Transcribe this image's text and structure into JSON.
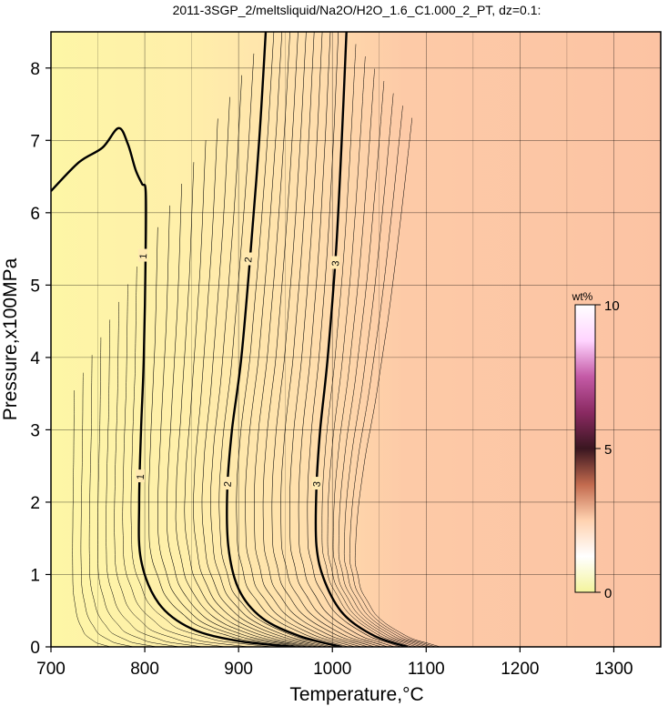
{
  "chart_data": {
    "type": "contour",
    "title": "2011-3SGP_2/meltsliquid/Na2O/H2O_1.6_C1.000_2_PT, dz=0.1:",
    "xlabel": "Temperature,°C",
    "ylabel": "Pressure,x100MPa",
    "xlim": [
      700,
      1350
    ],
    "ylim": [
      0,
      8.5
    ],
    "xticks": [
      "700",
      "800",
      "900",
      "1000",
      "1100",
      "1200",
      "1300"
    ],
    "yticks": [
      "0",
      "1",
      "2",
      "3",
      "4",
      "5",
      "6",
      "7",
      "8"
    ],
    "grid": true,
    "contour_interval": 0.1,
    "major_contours": [
      {
        "level": "1",
        "labels": [
          {
            "x": 795,
            "y": 2.35
          },
          {
            "x": 798,
            "y": 5.4
          }
        ],
        "points": [
          [
            700,
            6.3
          ],
          [
            730,
            6.7
          ],
          [
            755,
            6.9
          ],
          [
            772,
            7.17
          ],
          [
            782,
            6.95
          ],
          [
            790,
            6.6
          ],
          [
            797,
            6.4
          ],
          [
            801,
            6.3
          ],
          [
            801,
            5.5
          ],
          [
            799,
            4.0
          ],
          [
            796,
            3.0
          ],
          [
            794,
            2.0
          ],
          [
            796,
            1.2
          ],
          [
            815,
            0.6
          ],
          [
            850,
            0.25
          ],
          [
            900,
            0.08
          ],
          [
            960,
            0.0
          ]
        ]
      },
      {
        "level": "2",
        "labels": [
          {
            "x": 888,
            "y": 2.25
          },
          {
            "x": 910,
            "y": 5.35
          }
        ],
        "points": [
          [
            929,
            8.5
          ],
          [
            922,
            7.0
          ],
          [
            913,
            5.5
          ],
          [
            903,
            4.0
          ],
          [
            893,
            3.0
          ],
          [
            888,
            2.2
          ],
          [
            889,
            1.4
          ],
          [
            900,
            0.8
          ],
          [
            925,
            0.4
          ],
          [
            965,
            0.15
          ],
          [
            1010,
            0.0
          ]
        ]
      },
      {
        "level": "3",
        "labels": [
          {
            "x": 983,
            "y": 2.25
          },
          {
            "x": 1003,
            "y": 5.3
          }
        ],
        "points": [
          [
            1015,
            8.5
          ],
          [
            1010,
            7.0
          ],
          [
            1004,
            5.5
          ],
          [
            995,
            4.0
          ],
          [
            987,
            3.0
          ],
          [
            983,
            2.2
          ],
          [
            983,
            1.4
          ],
          [
            992,
            0.9
          ],
          [
            1012,
            0.45
          ],
          [
            1045,
            0.15
          ],
          [
            1080,
            0.0
          ]
        ]
      }
    ],
    "colorbar": {
      "unit": "wt%",
      "range": [
        0,
        10
      ],
      "ticks": [
        "0",
        "5",
        "10"
      ],
      "stops": [
        "#f4f49c",
        "#ffffff",
        "#ffd2b0",
        "#c26a4e",
        "#3a1620",
        "#8a2a62",
        "#c45aa6",
        "#ffd4ff",
        "#ffffff"
      ]
    },
    "colors": {
      "low": "#fdf6a6",
      "mid": "#ffe3b0",
      "high": "#fcc6a6"
    }
  }
}
